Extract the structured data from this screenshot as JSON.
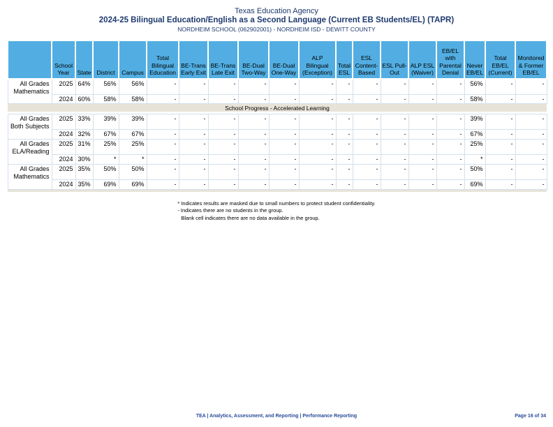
{
  "page": {
    "title": "Texas Education Agency",
    "subtitle": "2024-25 Bilingual Education/English as a Second Language (Current EB Students/EL) (TAPR)",
    "campus_line": "NORDHEIM SCHOOL (062902001) - NORDHEIM ISD - DEWITT COUNTY"
  },
  "table": {
    "columns": [
      "",
      "School Year",
      "State",
      "District",
      "Campus",
      "Total Bilingual Education",
      "BE-Trans Early Exit",
      "BE-Trans Late Exit",
      "BE-Dual Two-Way",
      "BE-Dual One-Way",
      "ALP Bilingual (Exception)",
      "Total ESL",
      "ESL Content-Based",
      "ESL Pull-Out",
      "ALP ESL (Waiver)",
      "EB/EL with Parental Denial",
      "Never EB/EL",
      "Total EB/EL (Current)",
      "Monitored & Former EB/EL"
    ],
    "sections": [
      {
        "band": "",
        "groups": [
          {
            "label": "All Grades Mathematics",
            "rows": [
              {
                "year": "2025",
                "values": [
                  "64%",
                  "56%",
                  "56%",
                  "-",
                  "-",
                  "-",
                  "-",
                  "-",
                  "-",
                  "-",
                  "-",
                  "-",
                  "-",
                  "-",
                  "56%",
                  "-",
                  "-"
                ]
              },
              {
                "year": "2024",
                "values": [
                  "60%",
                  "58%",
                  "58%",
                  "-",
                  "-",
                  "-",
                  "-",
                  "-",
                  "-",
                  "-",
                  "-",
                  "-",
                  "-",
                  "-",
                  "58%",
                  "-",
                  "-"
                ]
              }
            ]
          }
        ]
      },
      {
        "band": "School Progress - Accelerated Learning",
        "groups": [
          {
            "label": "All Grades Both Subjects",
            "rows": [
              {
                "year": "2025",
                "values": [
                  "33%",
                  "39%",
                  "39%",
                  "-",
                  "-",
                  "-",
                  "-",
                  "-",
                  "-",
                  "-",
                  "-",
                  "-",
                  "-",
                  "-",
                  "39%",
                  "-",
                  "-"
                ]
              },
              {
                "year": "2024",
                "values": [
                  "32%",
                  "67%",
                  "67%",
                  "-",
                  "-",
                  "-",
                  "-",
                  "-",
                  "-",
                  "-",
                  "-",
                  "-",
                  "-",
                  "-",
                  "67%",
                  "-",
                  "-"
                ]
              }
            ]
          },
          {
            "label": "All Grades ELA/Reading",
            "rows": [
              {
                "year": "2025",
                "values": [
                  "31%",
                  "25%",
                  "25%",
                  "-",
                  "-",
                  "-",
                  "-",
                  "-",
                  "-",
                  "-",
                  "-",
                  "-",
                  "-",
                  "-",
                  "25%",
                  "-",
                  "-"
                ]
              },
              {
                "year": "2024",
                "values": [
                  "30%",
                  "*",
                  "*",
                  "-",
                  "-",
                  "-",
                  "-",
                  "-",
                  "-",
                  "-",
                  "-",
                  "-",
                  "-",
                  "-",
                  "*",
                  "-",
                  "-"
                ]
              }
            ]
          },
          {
            "label": "All Grades Mathematics",
            "rows": [
              {
                "year": "2025",
                "values": [
                  "35%",
                  "50%",
                  "50%",
                  "-",
                  "-",
                  "-",
                  "-",
                  "-",
                  "-",
                  "-",
                  "-",
                  "-",
                  "-",
                  "-",
                  "50%",
                  "-",
                  "-"
                ]
              },
              {
                "year": "2024",
                "values": [
                  "35%",
                  "69%",
                  "69%",
                  "-",
                  "-",
                  "-",
                  "-",
                  "-",
                  "-",
                  "-",
                  "-",
                  "-",
                  "-",
                  "-",
                  "69%",
                  "-",
                  "-"
                ]
              }
            ]
          }
        ]
      }
    ]
  },
  "footnotes": [
    "* Indicates results are masked due to small numbers to protect student confidentiality.",
    "- Indicates there are no students in the group.",
    "Blank cell indicates there are no data available in the group."
  ],
  "footer": {
    "center": "TEA | Analytics, Assessment, and Reporting | Performance Reporting",
    "page": "Page 16 of 34"
  },
  "colors": {
    "header_bg": "#52aee2",
    "band_bg": "#e7e3d8",
    "grid_line": "#d3e0eb",
    "title_navy": "#1e3a6e",
    "footer_blue": "#2a4a9a"
  }
}
